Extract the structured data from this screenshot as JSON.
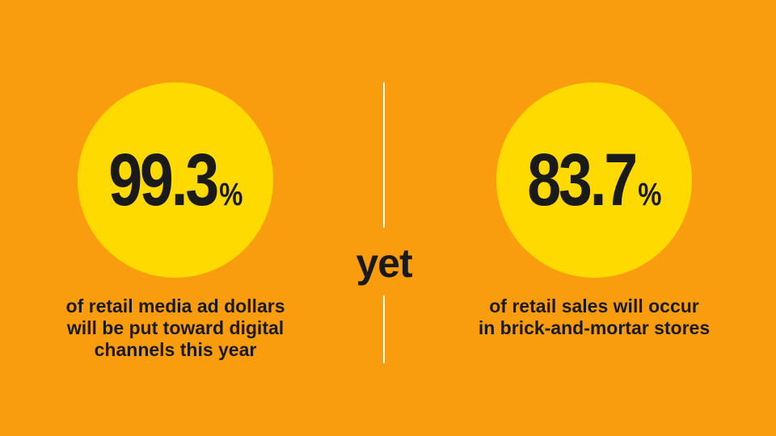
{
  "left_stat": {
    "value": "99.3",
    "unit": "%",
    "caption": [
      "of retail media ad dollars",
      "will be put toward digital",
      "channels this year"
    ]
  },
  "connector": "yet",
  "right_stat": {
    "value": "83.7",
    "unit": "%",
    "caption": [
      "of retail sales will occur",
      "in brick-and-mortar stores"
    ]
  },
  "colors": {
    "background": "#F99D0E",
    "circle": "#FFDA00",
    "text": "#1a1a1a",
    "divider": "#FFFFFF"
  }
}
